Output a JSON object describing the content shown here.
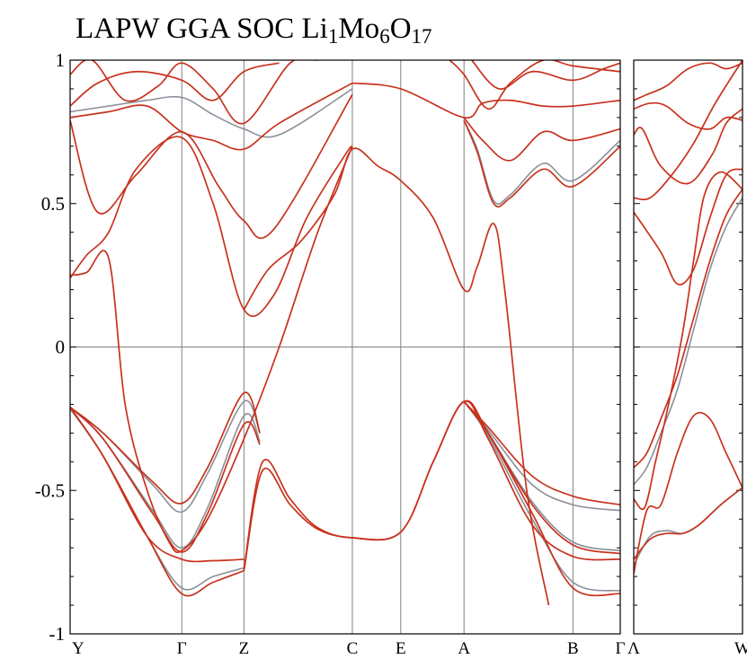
{
  "chart_data": {
    "type": "line",
    "title": {
      "prefix": "LAPW GGA SOC Li",
      "parts": [
        {
          "sub": "1",
          "text": "Mo"
        },
        {
          "sub": "6",
          "text": "O"
        },
        {
          "sub": "17",
          "text": ""
        }
      ]
    },
    "xlabel": "",
    "ylabel": "",
    "ylim": [
      -1,
      1
    ],
    "yticks": [
      {
        "value": -1,
        "label": "-1"
      },
      {
        "value": -0.5,
        "label": "-0.5"
      },
      {
        "value": 0,
        "label": "0"
      },
      {
        "value": 0.5,
        "label": "0.5"
      },
      {
        "value": 1,
        "label": "1"
      }
    ],
    "grid": "vertical lines at high-symmetry points and horizontal line at 0",
    "colors": {
      "soc": "#c8321e",
      "soc_alt": "#a0502a",
      "nosoc": "#8a8f99",
      "grid": "#808080"
    },
    "panels": [
      {
        "xlim": [
          0,
          1
        ],
        "kpoints": [
          {
            "x": 0,
            "label": "Y"
          },
          {
            "x": 0.203,
            "label": "Γ"
          },
          {
            "x": 0.316,
            "label": "Z"
          },
          {
            "x": 0.513,
            "label": "C"
          },
          {
            "x": 0.601,
            "label": "E"
          },
          {
            "x": 0.716,
            "label": "A"
          },
          {
            "x": 0.914,
            "label": "B"
          },
          {
            "x": 1,
            "label": "Γ"
          }
        ],
        "series": [
          {
            "color": "soc",
            "x": [
              0,
              0.06,
              0.14,
              0.203,
              0.26,
              0.316
            ],
            "y": [
              -0.21,
              -0.38,
              -0.66,
              -0.74,
              -0.745,
              -0.74
            ]
          },
          {
            "color": "soc",
            "x": [
              0,
              0.06,
              0.14,
              0.203,
              0.26,
              0.316
            ],
            "y": [
              -0.21,
              -0.38,
              -0.66,
              -0.86,
              -0.82,
              -0.78
            ]
          },
          {
            "color": "nosoc",
            "x": [
              0,
              0.06,
              0.14,
              0.203,
              0.26,
              0.316
            ],
            "y": [
              -0.215,
              -0.38,
              -0.66,
              -0.84,
              -0.8,
              -0.77
            ]
          },
          {
            "color": "soc",
            "x": [
              0,
              0.06,
              0.15,
              0.203,
              0.25,
              0.316,
              0.345
            ],
            "y": [
              -0.21,
              -0.32,
              -0.58,
              -0.715,
              -0.58,
              -0.27,
              -0.34
            ]
          },
          {
            "color": "nosoc",
            "x": [
              0,
              0.06,
              0.15,
              0.203,
              0.25,
              0.316,
              0.345
            ],
            "y": [
              -0.21,
              -0.32,
              -0.57,
              -0.7,
              -0.56,
              -0.24,
              -0.33
            ]
          },
          {
            "color": "soc",
            "x": [
              0,
              0.06,
              0.15,
              0.203,
              0.25,
              0.316,
              0.345
            ],
            "y": [
              -0.21,
              -0.3,
              -0.47,
              -0.545,
              -0.42,
              -0.16,
              -0.3
            ]
          },
          {
            "color": "nosoc",
            "x": [
              0,
              0.06,
              0.15,
              0.203,
              0.25,
              0.316,
              0.345
            ],
            "y": [
              -0.21,
              -0.3,
              -0.48,
              -0.575,
              -0.44,
              -0.19,
              -0.3
            ]
          },
          {
            "color": "soc",
            "x": [
              0.316,
              0.35,
              0.4,
              0.45,
              0.513,
              0.601,
              0.66,
              0.716,
              0.76,
              0.84,
              0.914,
              1
            ],
            "y": [
              -0.78,
              -0.43,
              -0.55,
              -0.635,
              -0.665,
              -0.645,
              -0.4,
              -0.19,
              -0.32,
              -0.62,
              -0.73,
              -0.74
            ]
          },
          {
            "color": "soc",
            "x": [
              0.316,
              0.35,
              0.4,
              0.45,
              0.513,
              0.601,
              0.66,
              0.716,
              0.76,
              0.84,
              0.914,
              1
            ],
            "y": [
              -0.775,
              -0.4,
              -0.53,
              -0.63,
              -0.665,
              -0.645,
              -0.4,
              -0.19,
              -0.3,
              -0.58,
              -0.84,
              -0.86
            ]
          },
          {
            "color": "nosoc",
            "x": [
              0.716,
              0.76,
              0.84,
              0.914,
              1
            ],
            "y": [
              -0.19,
              -0.31,
              -0.6,
              -0.82,
              -0.85
            ]
          },
          {
            "color": "nosoc",
            "x": [
              0.716,
              0.76,
              0.84,
              0.914,
              1
            ],
            "y": [
              -0.19,
              -0.3,
              -0.54,
              -0.68,
              -0.71
            ]
          },
          {
            "color": "soc",
            "x": [
              0.716,
              0.76,
              0.84,
              0.914,
              1
            ],
            "y": [
              -0.19,
              -0.3,
              -0.55,
              -0.69,
              -0.72
            ]
          },
          {
            "color": "nosoc",
            "x": [
              0.716,
              0.76,
              0.84,
              0.914,
              1
            ],
            "y": [
              -0.19,
              -0.29,
              -0.48,
              -0.55,
              -0.57
            ]
          },
          {
            "color": "soc",
            "x": [
              0.716,
              0.76,
              0.84,
              0.914,
              1
            ],
            "y": [
              -0.19,
              -0.28,
              -0.45,
              -0.52,
              -0.55
            ]
          },
          {
            "color": "soc",
            "x": [
              0,
              0.03,
              0.07,
              0.1,
              0.14,
              0.18,
              0.203,
              0.25,
              0.316,
              0.38,
              0.45,
              0.513
            ],
            "y": [
              0.25,
              0.26,
              0.31,
              -0.2,
              -0.5,
              -0.68,
              -0.71,
              -0.6,
              -0.32,
              0.0,
              0.4,
              0.7
            ]
          },
          {
            "color": "soc",
            "x": [
              0.316,
              0.36,
              0.42,
              0.48,
              0.513,
              0.56,
              0.601,
              0.66,
              0.716,
              0.74,
              0.77,
              0.79,
              0.83,
              0.87
            ],
            "y": [
              0.13,
              0.27,
              0.37,
              0.53,
              0.69,
              0.63,
              0.58,
              0.45,
              0.2,
              0.28,
              0.43,
              0.2,
              -0.5,
              -0.9
            ]
          },
          {
            "color": "soc",
            "x": [
              0,
              0.03,
              0.07,
              0.12,
              0.203,
              0.26,
              0.316,
              0.37,
              0.43,
              0.5,
              0.513
            ],
            "y": [
              0.24,
              0.32,
              0.4,
              0.62,
              0.73,
              0.5,
              0.13,
              0.18,
              0.45,
              0.67,
              0.7
            ]
          },
          {
            "color": "soc",
            "x": [
              0,
              0.05,
              0.12,
              0.203,
              0.27,
              0.316,
              0.37,
              0.513
            ],
            "y": [
              0.79,
              0.47,
              0.6,
              0.75,
              0.56,
              0.44,
              0.41,
              0.88
            ]
          },
          {
            "color": "soc",
            "x": [
              0,
              0.07,
              0.14,
              0.203,
              0.26,
              0.316,
              0.38,
              0.513
            ],
            "y": [
              0.8,
              0.82,
              0.84,
              0.75,
              0.72,
              0.69,
              0.78,
              0.92
            ]
          },
          {
            "color": "nosoc",
            "x": [
              0,
              0.07,
              0.14,
              0.203,
              0.26,
              0.316,
              0.38,
              0.513
            ],
            "y": [
              0.82,
              0.84,
              0.86,
              0.87,
              0.81,
              0.76,
              0.74,
              0.9
            ]
          },
          {
            "color": "soc",
            "x": [
              0.716,
              0.74,
              0.77,
              0.8,
              0.86,
              0.914,
              1
            ],
            "y": [
              0.79,
              0.68,
              0.5,
              0.52,
              0.62,
              0.56,
              0.7
            ]
          },
          {
            "color": "nosoc",
            "x": [
              0.716,
              0.74,
              0.77,
              0.8,
              0.86,
              0.914,
              1
            ],
            "y": [
              0.79,
              0.69,
              0.51,
              0.53,
              0.64,
              0.58,
              0.72
            ]
          },
          {
            "color": "soc",
            "x": [
              0.716,
              0.75,
              0.8,
              0.86,
              0.914,
              1
            ],
            "y": [
              0.8,
              0.72,
              0.65,
              0.75,
              0.72,
              0.76
            ]
          },
          {
            "color": "soc",
            "x": [
              0.513,
              0.601,
              0.716,
              0.75,
              0.8,
              0.86,
              0.914,
              1
            ],
            "y": [
              0.92,
              0.9,
              0.8,
              0.85,
              0.86,
              0.84,
              0.84,
              0.86
            ]
          },
          {
            "color": "soc",
            "x": [
              0,
              0.04,
              0.1,
              0.16,
              0.203,
              0.26,
              0.316,
              0.4,
              0.45
            ],
            "y": [
              0.95,
              1.0,
              0.86,
              0.91,
              0.99,
              0.9,
              0.78,
              0.99,
              1.0
            ]
          },
          {
            "color": "soc",
            "x": [
              0,
              0.05,
              0.12,
              0.203,
              0.26,
              0.316,
              0.38
            ],
            "y": [
              0.84,
              0.92,
              0.96,
              0.93,
              0.86,
              0.96,
              0.99
            ]
          },
          {
            "color": "soc",
            "x": [
              0.73,
              0.78,
              0.84,
              0.914,
              0.97,
              1
            ],
            "y": [
              1.0,
              0.9,
              0.96,
              0.93,
              0.97,
              0.99
            ]
          },
          {
            "color": "soc",
            "x": [
              0.69,
              0.716,
              0.76,
              0.8,
              0.86,
              0.914,
              1
            ],
            "y": [
              1.0,
              0.95,
              0.83,
              0.92,
              1.0,
              0.98,
              0.96
            ]
          }
        ]
      },
      {
        "xlim": [
          0,
          1
        ],
        "kpoints": [
          {
            "x": 0,
            "label": "Λ"
          },
          {
            "x": 1,
            "label": "W"
          }
        ],
        "series": [
          {
            "color": "soc",
            "x": [
              0,
              0.15,
              0.3,
              0.45,
              0.6,
              0.8,
              1
            ],
            "y": [
              -0.74,
              -0.67,
              -0.65,
              -0.65,
              -0.62,
              -0.55,
              -0.49
            ]
          },
          {
            "color": "nosoc",
            "x": [
              0,
              0.15,
              0.3,
              0.45,
              0.6,
              0.8,
              1
            ],
            "y": [
              -0.76,
              -0.66,
              -0.64,
              -0.65,
              -0.62,
              -0.55,
              -0.49
            ]
          },
          {
            "color": "soc",
            "x": [
              0,
              0.12,
              0.25,
              0.4,
              0.55,
              0.7,
              0.85,
              1
            ],
            "y": [
              -0.79,
              -0.57,
              -0.55,
              -0.37,
              -0.24,
              -0.25,
              -0.37,
              -0.49
            ]
          },
          {
            "color": "soc",
            "x": [
              0,
              0.12,
              0.25,
              0.4,
              0.55,
              0.7,
              0.85,
              1
            ],
            "y": [
              -0.42,
              -0.37,
              -0.25,
              -0.1,
              0.1,
              0.3,
              0.46,
              0.55
            ]
          },
          {
            "color": "nosoc",
            "x": [
              0,
              0.12,
              0.25,
              0.4,
              0.55,
              0.7,
              0.85,
              1
            ],
            "y": [
              -0.48,
              -0.42,
              -0.3,
              -0.15,
              0.06,
              0.27,
              0.42,
              0.52
            ]
          },
          {
            "color": "soc",
            "x": [
              0,
              0.1,
              0.2,
              0.32,
              0.45,
              0.55,
              0.65,
              0.8,
              1
            ],
            "y": [
              -0.53,
              -0.56,
              -0.4,
              -0.2,
              0.05,
              0.3,
              0.53,
              0.61,
              0.55
            ]
          },
          {
            "color": "soc",
            "x": [
              0,
              0.25,
              0.4,
              0.55,
              0.7,
              0.85,
              1
            ],
            "y": [
              0.47,
              0.33,
              0.22,
              0.27,
              0.45,
              0.6,
              0.62
            ]
          },
          {
            "color": "soc",
            "x": [
              0,
              0.08,
              0.25,
              0.5,
              0.72,
              0.85,
              1
            ],
            "y": [
              0.74,
              0.76,
              0.63,
              0.57,
              0.67,
              0.78,
              0.83
            ]
          },
          {
            "color": "soc",
            "x": [
              0,
              0.12,
              0.3,
              0.5,
              0.7,
              0.85,
              1
            ],
            "y": [
              0.86,
              0.88,
              0.91,
              0.97,
              0.99,
              0.97,
              0.99
            ]
          },
          {
            "color": "soc",
            "x": [
              0,
              0.15,
              0.3,
              0.5,
              0.7,
              0.85,
              1
            ],
            "y": [
              0.83,
              0.85,
              0.84,
              0.78,
              0.76,
              0.8,
              0.79
            ]
          },
          {
            "color": "soc",
            "x": [
              0,
              0.15,
              0.35,
              0.55,
              0.75,
              1
            ],
            "y": [
              0.52,
              0.52,
              0.6,
              0.71,
              0.85,
              1.0
            ]
          }
        ]
      }
    ]
  }
}
